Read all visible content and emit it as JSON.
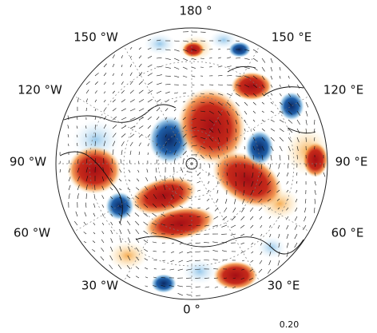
{
  "map": {
    "longitude_labels": [
      "180 °",
      "150 °E",
      "120 °E",
      "90 °E",
      "60 °E",
      "30 °E",
      "0 °",
      "30 °W",
      "60 °W",
      "90 °W",
      "120 °W",
      "150 °W"
    ],
    "reference_vector_label": "0.20"
  }
}
